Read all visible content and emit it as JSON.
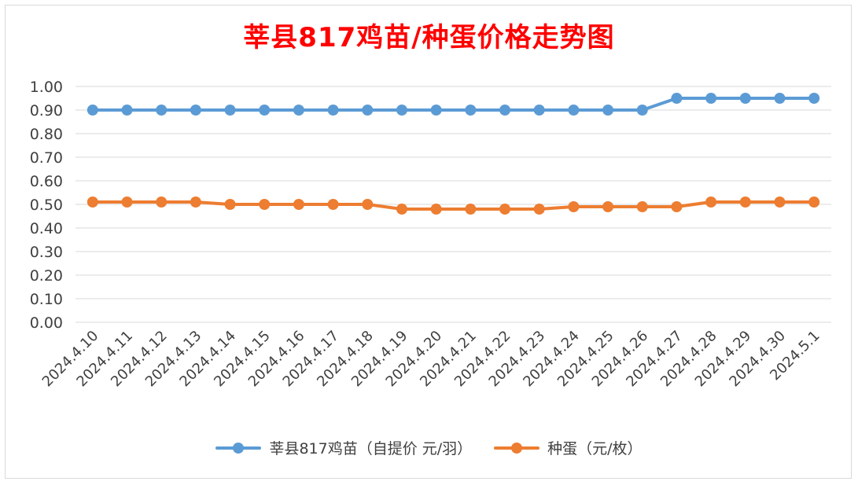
{
  "chart_data": {
    "type": "line",
    "title": "莘县817鸡苗/种蛋价格走势图",
    "categories": [
      "2024.4.10",
      "2024.4.11",
      "2024.4.12",
      "2024.4.13",
      "2024.4.14",
      "2024.4.15",
      "2024.4.16",
      "2024.4.17",
      "2024.4.18",
      "2024.4.19",
      "2024.4.20",
      "2024.4.21",
      "2024.4.22",
      "2024.4.23",
      "2024.4.24",
      "2024.4.25",
      "2024.4.26",
      "2024.4.27",
      "2024.4.28",
      "2024.4.29",
      "2024.4.30",
      "2024.5.1"
    ],
    "series": [
      {
        "name": "莘县817鸡苗（自提价 元/羽）",
        "color": "#5b9bd5",
        "values": [
          0.9,
          0.9,
          0.9,
          0.9,
          0.9,
          0.9,
          0.9,
          0.9,
          0.9,
          0.9,
          0.9,
          0.9,
          0.9,
          0.9,
          0.9,
          0.9,
          0.9,
          0.95,
          0.95,
          0.95,
          0.95,
          0.95
        ]
      },
      {
        "name": "种蛋（元/枚）",
        "color": "#ed7d31",
        "values": [
          0.51,
          0.51,
          0.51,
          0.51,
          0.5,
          0.5,
          0.5,
          0.5,
          0.5,
          0.48,
          0.48,
          0.48,
          0.48,
          0.48,
          0.49,
          0.49,
          0.49,
          0.49,
          0.51,
          0.51,
          0.51,
          0.51
        ]
      }
    ],
    "yticks": [
      "0.00",
      "0.10",
      "0.20",
      "0.30",
      "0.40",
      "0.50",
      "0.60",
      "0.70",
      "0.80",
      "0.90",
      "1.00"
    ],
    "ylim": [
      0,
      1.0
    ],
    "grid": true,
    "legend_position": "bottom",
    "title_color": "#ff0000"
  }
}
